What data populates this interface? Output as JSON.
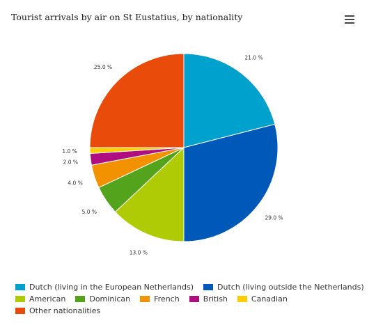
{
  "chart_data": {
    "type": "pie",
    "title": "Tourist arrivals by air on St Eustatius, by nationality",
    "slices": [
      {
        "name": "Dutch (living in the European Netherlands)",
        "value": 21.0,
        "label": "21.0 %",
        "color": "#00a1cd"
      },
      {
        "name": "Dutch (living outside the Netherlands)",
        "value": 29.0,
        "label": "29.0 %",
        "color": "#0058b8"
      },
      {
        "name": "American",
        "value": 13.0,
        "label": "13.0 %",
        "color": "#afcb05"
      },
      {
        "name": "Dominican",
        "value": 5.0,
        "label": "5.0 %",
        "color": "#53a31d"
      },
      {
        "name": "French",
        "value": 4.0,
        "label": "4.0 %",
        "color": "#f39200"
      },
      {
        "name": "British",
        "value": 2.0,
        "label": "2.0 %",
        "color": "#af0e80"
      },
      {
        "name": "Canadian",
        "value": 1.0,
        "label": "1.0 %",
        "color": "#ffcc00"
      },
      {
        "name": "Other nationalities",
        "value": 25.0,
        "label": "25.0 %",
        "color": "#e94c0a"
      }
    ],
    "legend_position": "bottom-left"
  },
  "menu_icon": "hamburger-menu-icon"
}
